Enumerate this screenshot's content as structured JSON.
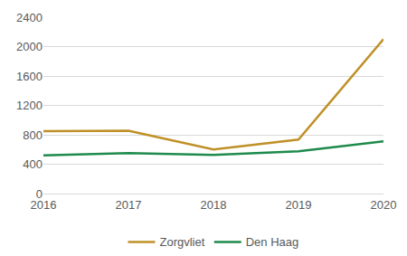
{
  "chart_data": {
    "type": "line",
    "categories": [
      "2016",
      "2017",
      "2018",
      "2019",
      "2020"
    ],
    "series": [
      {
        "name": "Zorgvliet",
        "color": "#bf9027",
        "values": [
          850,
          855,
          600,
          735,
          2100
        ]
      },
      {
        "name": "Den Haag",
        "color": "#1e8a4c",
        "values": [
          520,
          550,
          525,
          575,
          710
        ]
      }
    ],
    "ylim": [
      0,
      2400
    ],
    "yticks": [
      0,
      400,
      800,
      1200,
      1600,
      2000,
      2400
    ],
    "grid": true,
    "legend": "bottom"
  }
}
